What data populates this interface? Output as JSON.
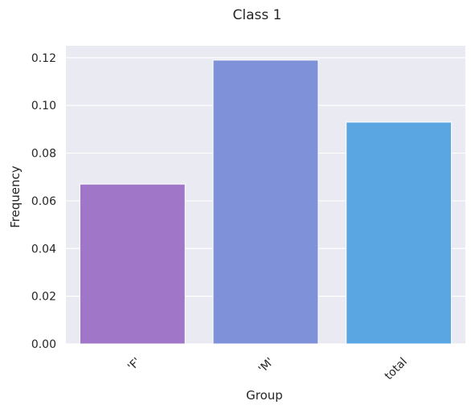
{
  "chart_data": {
    "type": "bar",
    "title": "Class 1",
    "xlabel": "Group",
    "ylabel": "Frequency",
    "categories": [
      "'F'",
      "'M'",
      "total"
    ],
    "values": [
      0.067,
      0.119,
      0.093
    ],
    "ylim": [
      0,
      0.125
    ],
    "yticks": [
      0.0,
      0.02,
      0.04,
      0.06,
      0.08,
      0.1,
      0.12
    ],
    "ytick_labels": [
      "0.00",
      "0.02",
      "0.04",
      "0.06",
      "0.08",
      "0.10",
      "0.12"
    ],
    "grid": true,
    "bar_colors": [
      "#a076c8",
      "#7f92d9",
      "#5aa6e3"
    ],
    "plot_background": "#eaeaf2",
    "grid_color": "#ffffff"
  }
}
